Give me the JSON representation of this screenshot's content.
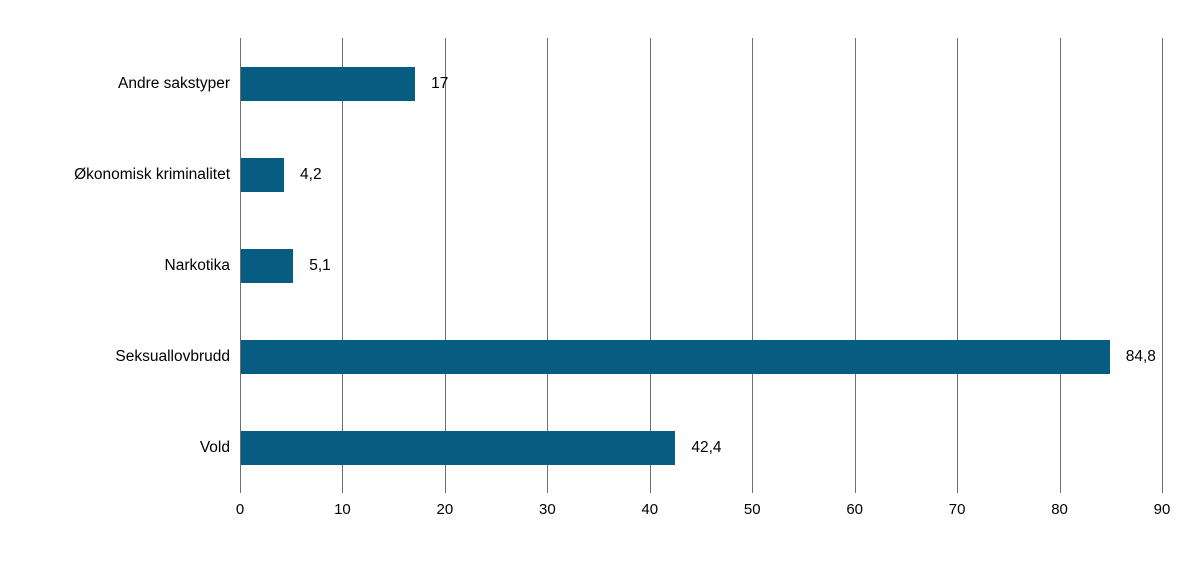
{
  "chart_data": {
    "type": "bar",
    "orientation": "horizontal",
    "title": "",
    "xlabel": "",
    "ylabel": "",
    "categories": [
      "Andre sakstyper",
      "Økonomisk kriminalitet",
      "Narkotika",
      "Seksuallovbrudd",
      "Vold"
    ],
    "values": [
      17,
      4.2,
      5.1,
      84.8,
      42.4
    ],
    "value_labels": [
      "17",
      "4,2",
      "5,1",
      "84,8",
      "42,4"
    ],
    "xlim": [
      0,
      90
    ],
    "x_ticks": [
      0,
      10,
      20,
      30,
      40,
      50,
      60,
      70,
      80,
      90
    ],
    "x_tick_labels": [
      "0",
      "10",
      "20",
      "30",
      "40",
      "50",
      "60",
      "70",
      "80",
      "90"
    ],
    "grid": true,
    "legend": false,
    "bar_color": "#065d81",
    "gridline_color": "#6e6e6e",
    "text_color": "#000000",
    "background_color": "#ffffff"
  }
}
